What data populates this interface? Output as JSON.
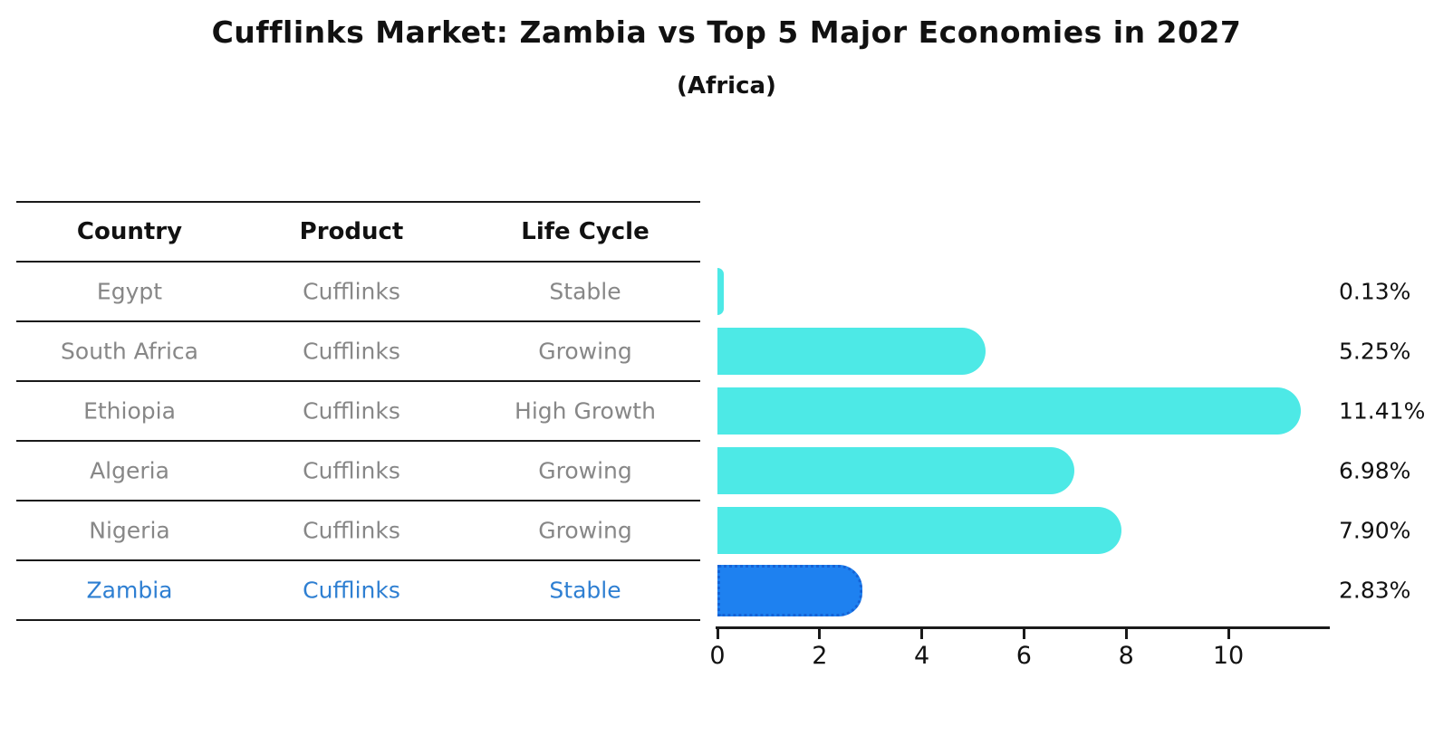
{
  "title": "Cufflinks Market: Zambia vs Top 5 Major Economies in 2027",
  "subtitle": "(Africa)",
  "table": {
    "headers": [
      "Country",
      "Product",
      "Life Cycle"
    ],
    "rows": [
      {
        "country": "Egypt",
        "product": "Cufflinks",
        "life_cycle": "Stable",
        "highlight": false
      },
      {
        "country": "South Africa",
        "product": "Cufflinks",
        "life_cycle": "Growing",
        "highlight": false
      },
      {
        "country": "Ethiopia",
        "product": "Cufflinks",
        "life_cycle": "High Growth",
        "highlight": false
      },
      {
        "country": "Algeria",
        "product": "Cufflinks",
        "life_cycle": "Growing",
        "highlight": false
      },
      {
        "country": "Nigeria",
        "product": "Cufflinks",
        "life_cycle": "Growing",
        "highlight": false
      },
      {
        "country": "Zambia",
        "product": "Cufflinks",
        "life_cycle": "Stable",
        "highlight": true
      }
    ]
  },
  "chart_data": {
    "type": "bar",
    "orientation": "horizontal",
    "title": "Cufflinks Market: Zambia vs Top 5 Major Economies in 2027",
    "subtitle": "(Africa)",
    "categories": [
      "Egypt",
      "South Africa",
      "Ethiopia",
      "Algeria",
      "Nigeria",
      "Zambia"
    ],
    "values": [
      0.13,
      5.25,
      11.41,
      6.98,
      7.9,
      2.83
    ],
    "value_labels": [
      "0.13%",
      "5.25%",
      "11.41%",
      "6.98%",
      "7.90%",
      "2.83%"
    ],
    "xlabel": "",
    "ylabel": "",
    "xlim": [
      0,
      12
    ],
    "xticks": [
      0,
      2,
      4,
      6,
      8,
      10
    ],
    "highlight_index": 5,
    "legend": false,
    "grid": false
  },
  "colors": {
    "bar": "#4DE9E6",
    "highlight_bar": "#1E81F0",
    "highlight_bar_border": "#1563D6",
    "row_text": "#878787",
    "highlight_text": "#2E7FD2",
    "header_text": "#111111",
    "line": "#1a1a1a",
    "value_label": "#111111"
  }
}
